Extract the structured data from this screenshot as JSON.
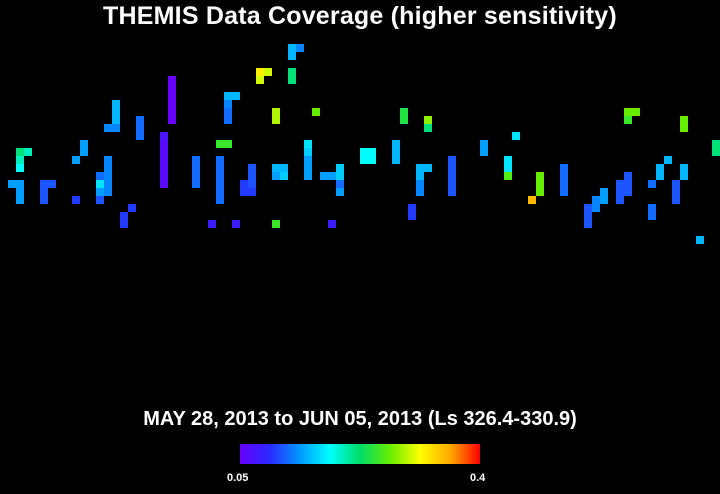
{
  "title": "THEMIS Data Coverage (higher sensitivity)",
  "subtitle": "MAY 28, 2013 to JUN 05, 2013 (Ls 326.4-330.9)",
  "colorbar": {
    "min_label": "0.05",
    "max_label": "0.4",
    "colors": [
      "#6600ff",
      "#2a2aff",
      "#0099ff",
      "#00ffff",
      "#00dd66",
      "#66ee00",
      "#ffff00",
      "#ffaa00",
      "#ff0000"
    ]
  },
  "chart_data": {
    "type": "heatmap",
    "title": "THEMIS Data Coverage (higher sensitivity)",
    "subtitle": "MAY 28, 2013 to JUN 05, 2013 (Ls 326.4-330.9)",
    "value_range": [
      0.05,
      0.4
    ],
    "colorbar_ticks": [
      "0.05",
      "0.4"
    ],
    "cells": [
      [
        2,
        31,
        0.22
      ],
      [
        2,
        32,
        0.2
      ],
      [
        2,
        33,
        0.18
      ],
      [
        3,
        31,
        0.2
      ],
      [
        1,
        35,
        0.14
      ],
      [
        2,
        35,
        0.14
      ],
      [
        2,
        36,
        0.14
      ],
      [
        2,
        37,
        0.14
      ],
      [
        5,
        35,
        0.11
      ],
      [
        5,
        36,
        0.11
      ],
      [
        5,
        37,
        0.11
      ],
      [
        6,
        35,
        0.11
      ],
      [
        9,
        37,
        0.1
      ],
      [
        9,
        32,
        0.14
      ],
      [
        10,
        30,
        0.14
      ],
      [
        10,
        31,
        0.14
      ],
      [
        12,
        34,
        0.12
      ],
      [
        12,
        35,
        0.17
      ],
      [
        12,
        36,
        0.14
      ],
      [
        12,
        37,
        0.11
      ],
      [
        13,
        32,
        0.13
      ],
      [
        13,
        33,
        0.13
      ],
      [
        13,
        34,
        0.13
      ],
      [
        13,
        35,
        0.13
      ],
      [
        13,
        36,
        0.13
      ],
      [
        14,
        25,
        0.15
      ],
      [
        14,
        26,
        0.15
      ],
      [
        14,
        27,
        0.15
      ],
      [
        14,
        28,
        0.13
      ],
      [
        13,
        28,
        0.13
      ],
      [
        15,
        39,
        0.1
      ],
      [
        15,
        40,
        0.1
      ],
      [
        16,
        38,
        0.1
      ],
      [
        17,
        27,
        0.12
      ],
      [
        17,
        28,
        0.12
      ],
      [
        17,
        29,
        0.12
      ],
      [
        20,
        29,
        0.07
      ],
      [
        20,
        30,
        0.06
      ],
      [
        20,
        31,
        0.06
      ],
      [
        20,
        32,
        0.06
      ],
      [
        20,
        33,
        0.06
      ],
      [
        20,
        34,
        0.06
      ],
      [
        20,
        35,
        0.06
      ],
      [
        21,
        22,
        0.05
      ],
      [
        21,
        23,
        0.05
      ],
      [
        21,
        24,
        0.05
      ],
      [
        21,
        25,
        0.05
      ],
      [
        21,
        26,
        0.05
      ],
      [
        21,
        27,
        0.05
      ],
      [
        24,
        32,
        0.12
      ],
      [
        24,
        33,
        0.12
      ],
      [
        24,
        34,
        0.12
      ],
      [
        24,
        35,
        0.12
      ],
      [
        26,
        40,
        0.08
      ],
      [
        27,
        30,
        0.25
      ],
      [
        28,
        30,
        0.25
      ],
      [
        27,
        32,
        0.12
      ],
      [
        27,
        33,
        0.12
      ],
      [
        27,
        34,
        0.12
      ],
      [
        27,
        35,
        0.12
      ],
      [
        27,
        36,
        0.12
      ],
      [
        27,
        37,
        0.12
      ],
      [
        28,
        24,
        0.15
      ],
      [
        28,
        25,
        0.13
      ],
      [
        28,
        26,
        0.12
      ],
      [
        28,
        27,
        0.12
      ],
      [
        29,
        24,
        0.15
      ],
      [
        29,
        40,
        0.08
      ],
      [
        30,
        35,
        0.1
      ],
      [
        30,
        36,
        0.1
      ],
      [
        31,
        33,
        0.11
      ],
      [
        31,
        34,
        0.11
      ],
      [
        31,
        35,
        0.11
      ],
      [
        31,
        36,
        0.1
      ],
      [
        32,
        21,
        0.32
      ],
      [
        32,
        22,
        0.3
      ],
      [
        33,
        21,
        0.3
      ],
      [
        34,
        26,
        0.29
      ],
      [
        34,
        27,
        0.29
      ],
      [
        34,
        33,
        0.15
      ],
      [
        34,
        34,
        0.14
      ],
      [
        35,
        34,
        0.16
      ],
      [
        34,
        40,
        0.25
      ],
      [
        35,
        33,
        0.15
      ],
      [
        36,
        18,
        0.15
      ],
      [
        36,
        19,
        0.15
      ],
      [
        37,
        18,
        0.13
      ],
      [
        36,
        21,
        0.22
      ],
      [
        36,
        22,
        0.22
      ],
      [
        38,
        30,
        0.17
      ],
      [
        38,
        31,
        0.16
      ],
      [
        38,
        32,
        0.14
      ],
      [
        38,
        33,
        0.14
      ],
      [
        38,
        34,
        0.14
      ],
      [
        39,
        26,
        0.27
      ],
      [
        40,
        34,
        0.14
      ],
      [
        41,
        34,
        0.14
      ],
      [
        41,
        40,
        0.08
      ],
      [
        42,
        33,
        0.16
      ],
      [
        42,
        34,
        0.16
      ],
      [
        42,
        35,
        0.12
      ],
      [
        42,
        36,
        0.14
      ],
      [
        45,
        31,
        0.18
      ],
      [
        45,
        32,
        0.18
      ],
      [
        46,
        31,
        0.18
      ],
      [
        46,
        32,
        0.18
      ],
      [
        49,
        30,
        0.15
      ],
      [
        49,
        31,
        0.15
      ],
      [
        49,
        32,
        0.15
      ],
      [
        50,
        26,
        0.24
      ],
      [
        50,
        27,
        0.24
      ],
      [
        51,
        38,
        0.1
      ],
      [
        51,
        39,
        0.1
      ],
      [
        52,
        33,
        0.15
      ],
      [
        52,
        34,
        0.15
      ],
      [
        52,
        35,
        0.13
      ],
      [
        52,
        36,
        0.13
      ],
      [
        53,
        33,
        0.15
      ],
      [
        53,
        27,
        0.28
      ],
      [
        53,
        28,
        0.22
      ],
      [
        56,
        32,
        0.11
      ],
      [
        56,
        33,
        0.11
      ],
      [
        56,
        34,
        0.11
      ],
      [
        56,
        35,
        0.11
      ],
      [
        56,
        36,
        0.11
      ],
      [
        60,
        30,
        0.14
      ],
      [
        60,
        31,
        0.14
      ],
      [
        63,
        32,
        0.17
      ],
      [
        63,
        33,
        0.17
      ],
      [
        63,
        34,
        0.26
      ],
      [
        64,
        29,
        0.17
      ],
      [
        66,
        37,
        0.35
      ],
      [
        67,
        34,
        0.27
      ],
      [
        67,
        35,
        0.27
      ],
      [
        67,
        36,
        0.27
      ],
      [
        70,
        33,
        0.12
      ],
      [
        70,
        34,
        0.12
      ],
      [
        70,
        35,
        0.12
      ],
      [
        70,
        36,
        0.12
      ],
      [
        73,
        38,
        0.11
      ],
      [
        73,
        39,
        0.11
      ],
      [
        73,
        40,
        0.11
      ],
      [
        74,
        37,
        0.13
      ],
      [
        74,
        38,
        0.13
      ],
      [
        75,
        36,
        0.14
      ],
      [
        75,
        37,
        0.14
      ],
      [
        77,
        35,
        0.11
      ],
      [
        77,
        36,
        0.11
      ],
      [
        77,
        37,
        0.11
      ],
      [
        78,
        34,
        0.11
      ],
      [
        78,
        35,
        0.11
      ],
      [
        78,
        36,
        0.11
      ],
      [
        78,
        26,
        0.27
      ],
      [
        79,
        26,
        0.27
      ],
      [
        78,
        27,
        0.25
      ],
      [
        81,
        35,
        0.12
      ],
      [
        81,
        38,
        0.12
      ],
      [
        81,
        39,
        0.12
      ],
      [
        82,
        33,
        0.15
      ],
      [
        82,
        34,
        0.15
      ],
      [
        83,
        32,
        0.15
      ],
      [
        85,
        27,
        0.27
      ],
      [
        85,
        28,
        0.27
      ],
      [
        85,
        33,
        0.15
      ],
      [
        85,
        34,
        0.15
      ],
      [
        84,
        35,
        0.11
      ],
      [
        84,
        36,
        0.11
      ],
      [
        84,
        37,
        0.11
      ],
      [
        87,
        42,
        0.15
      ],
      [
        89,
        30,
        0.22
      ],
      [
        89,
        31,
        0.22
      ]
    ]
  }
}
